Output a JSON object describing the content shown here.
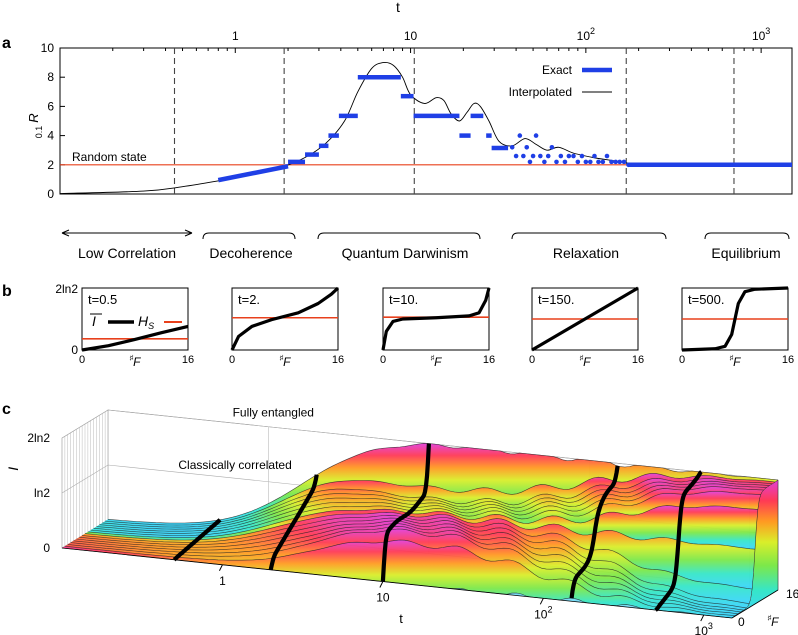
{
  "panel_labels": {
    "a": "a",
    "b": "b",
    "c": "c"
  },
  "colors": {
    "exact": "#1f3fe6",
    "interp": "#000000",
    "random": "#e8401c",
    "hs": "#e8401c",
    "I": "#000000"
  },
  "chart_data": [
    {
      "id": "a",
      "type": "scatter",
      "xlabel": "t",
      "ylabel": "R",
      "ylabel_sub": "0.1",
      "xscale": "log",
      "xlim": [
        0.1,
        1500
      ],
      "ylim": [
        0,
        10
      ],
      "xticks": [
        {
          "value": 1,
          "label": "1"
        },
        {
          "value": 10,
          "label": "10"
        },
        {
          "value": 100,
          "label": "10",
          "sup": "2"
        },
        {
          "value": 1000,
          "label": "10",
          "sup": "3"
        }
      ],
      "yticks": [
        0,
        2,
        4,
        6,
        8,
        10
      ],
      "legend": {
        "position": "top-right",
        "exact_label": "Exact",
        "interp_label": "Interpolated"
      },
      "random_state": {
        "value": 2,
        "label": "Random state"
      },
      "phase_boundaries": [
        0.45,
        1.9,
        10.5,
        170,
        700
      ],
      "interpolated": {
        "t": [
          0.1,
          0.3,
          0.5,
          0.8,
          1.2,
          1.8,
          2.5,
          3.3,
          4.2,
          5.0,
          6.0,
          7.0,
          8.0,
          9.0,
          10.0,
          12.0,
          14.0,
          15.5,
          17.0,
          19.0,
          21.0,
          23.0,
          25.0,
          28.0,
          32.0,
          38.0,
          45.0,
          52.0,
          60.0,
          70.0,
          85.0,
          110.0,
          140.0,
          180.0,
          250.0,
          400.0,
          700.0,
          1500.0
        ],
        "R": [
          0.03,
          0.2,
          0.5,
          0.9,
          1.3,
          1.8,
          2.5,
          3.5,
          5.0,
          7.0,
          8.6,
          9.0,
          8.8,
          8.0,
          6.8,
          6.2,
          6.6,
          6.4,
          5.5,
          5.0,
          5.6,
          6.2,
          6.0,
          5.0,
          3.6,
          3.3,
          3.8,
          3.4,
          3.0,
          3.2,
          2.8,
          2.5,
          2.3,
          2.1,
          2.0,
          2.0,
          2.0,
          2.0
        ]
      },
      "exact_segments": [
        {
          "t0": 0.8,
          "t1": 2.0,
          "R0": 0.95,
          "R1": 1.9
        },
        {
          "t0": 2.0,
          "t1": 2.5,
          "R0": 2.2,
          "R1": 2.2
        },
        {
          "t0": 2.5,
          "t1": 3.0,
          "R0": 2.7,
          "R1": 2.7
        },
        {
          "t0": 3.0,
          "t1": 3.4,
          "R0": 3.3,
          "R1": 3.3
        },
        {
          "t0": 3.4,
          "t1": 3.9,
          "R0": 4.0,
          "R1": 4.0
        },
        {
          "t0": 3.9,
          "t1": 5.0,
          "R0": 5.35,
          "R1": 5.35
        },
        {
          "t0": 5.0,
          "t1": 8.8,
          "R0": 8.0,
          "R1": 8.0
        },
        {
          "t0": 8.8,
          "t1": 10.4,
          "R0": 6.7,
          "R1": 6.7
        },
        {
          "t0": 10.4,
          "t1": 19.0,
          "R0": 5.35,
          "R1": 5.35
        },
        {
          "t0": 19.0,
          "t1": 22.0,
          "R0": 4.0,
          "R1": 4.0
        },
        {
          "t0": 22.0,
          "t1": 26.0,
          "R0": 5.35,
          "R1": 5.35
        },
        {
          "t0": 27.0,
          "t1": 29.0,
          "R0": 4.0,
          "R1": 4.0
        },
        {
          "t0": 29.0,
          "t1": 36.0,
          "R0": 3.15,
          "R1": 3.15
        }
      ],
      "exact_points": {
        "t": [
          38,
          40,
          42,
          44,
          46,
          48,
          50,
          52,
          55,
          58,
          61,
          64,
          68,
          72,
          76,
          80,
          85,
          90,
          95,
          100,
          106,
          112,
          118,
          125,
          132,
          140,
          148,
          156,
          165,
          175
        ],
        "R": [
          3.2,
          2.6,
          4.0,
          2.6,
          3.2,
          2.2,
          2.6,
          4.0,
          2.6,
          2.2,
          2.6,
          3.2,
          2.2,
          2.6,
          2.2,
          2.6,
          2.6,
          2.2,
          2.6,
          2.2,
          2.2,
          2.6,
          2.2,
          2.2,
          2.6,
          2.2,
          2.2,
          2.2,
          2.2,
          2.0
        ]
      },
      "exact_tail": {
        "t0": 175,
        "t1": 1500,
        "R": 2.0
      }
    },
    {
      "id": "b",
      "type": "line",
      "ylabel_top": "2ln2",
      "ylabel_bottom": "0",
      "xlabel": "F",
      "x_min_label": "0",
      "x_max_label": "16",
      "legend": {
        "i_label": "I",
        "hs_label": "H",
        "hs_sub": "S"
      },
      "subplots": [
        {
          "label": "t=0.5",
          "hs": 0.18,
          "curve": [
            [
              0,
              0.0
            ],
            [
              4,
              0.07
            ],
            [
              8,
              0.17
            ],
            [
              12,
              0.28
            ],
            [
              16,
              0.38
            ]
          ]
        },
        {
          "label": "t=2.",
          "hs": 0.52,
          "curve": [
            [
              0,
              0.0
            ],
            [
              1,
              0.22
            ],
            [
              3,
              0.38
            ],
            [
              6,
              0.49
            ],
            [
              10,
              0.6
            ],
            [
              13,
              0.75
            ],
            [
              15,
              0.9
            ],
            [
              16,
              1.0
            ]
          ]
        },
        {
          "label": "t=10.",
          "hs": 0.53,
          "curve": [
            [
              0,
              0.0
            ],
            [
              0.5,
              0.3
            ],
            [
              1.5,
              0.46
            ],
            [
              3,
              0.5
            ],
            [
              8,
              0.52
            ],
            [
              13,
              0.55
            ],
            [
              14.5,
              0.6
            ],
            [
              15.5,
              0.8
            ],
            [
              16,
              1.0
            ]
          ]
        },
        {
          "label": "t=150.",
          "hs": 0.5,
          "curve": [
            [
              0,
              0.0
            ],
            [
              8,
              0.5
            ],
            [
              16,
              1.0
            ]
          ]
        },
        {
          "label": "t=500.",
          "hs": 0.5,
          "curve": [
            [
              0,
              0.0
            ],
            [
              5,
              0.02
            ],
            [
              6.5,
              0.06
            ],
            [
              7.5,
              0.25
            ],
            [
              8,
              0.5
            ],
            [
              8.5,
              0.75
            ],
            [
              9.5,
              0.94
            ],
            [
              11,
              0.98
            ],
            [
              16,
              1.0
            ]
          ]
        }
      ]
    },
    {
      "id": "c",
      "type": "surface",
      "xlabel": "t",
      "ylabel": "I",
      "zlabel": "F",
      "x_ticks": [
        {
          "value": 1,
          "label": "1"
        },
        {
          "value": 10,
          "label": "10"
        },
        {
          "value": 100,
          "label": "10",
          "sup": "2"
        },
        {
          "value": 1000,
          "label": "10",
          "sup": "3"
        }
      ],
      "x_origin_label": "0",
      "z_label_16": "16",
      "z_ticks": [
        {
          "value": 0,
          "label": "0"
        },
        {
          "value": 0.5,
          "label": "ln2"
        },
        {
          "value": 1,
          "label": "2ln2"
        }
      ],
      "annotations": [
        "Fully entangled",
        "Classically correlated"
      ],
      "highlight_times": [
        0.5,
        2,
        10,
        150,
        500
      ]
    }
  ],
  "phases": [
    {
      "label": "Low Correlation"
    },
    {
      "label": "Decoherence"
    },
    {
      "label": "Quantum Darwinism"
    },
    {
      "label": "Relaxation"
    },
    {
      "label": "Equilibrium"
    }
  ],
  "axis_t_top": "t"
}
